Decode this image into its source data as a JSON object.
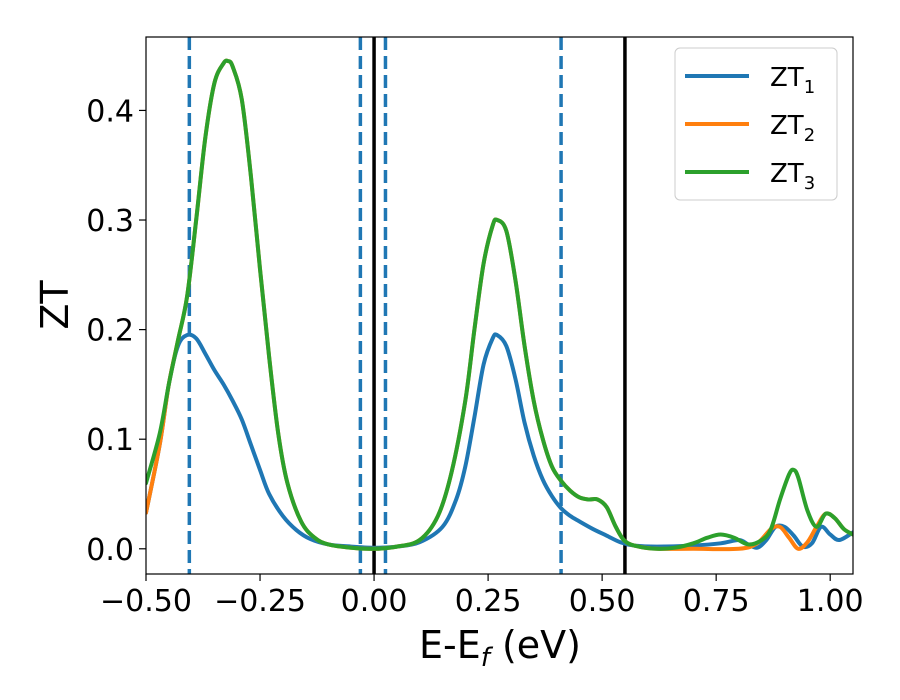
{
  "chart_data": {
    "type": "line",
    "title": "",
    "xlabel": "E-E",
    "xlabel_sub": "f",
    "xlabel_unit": " (eV)",
    "ylabel": "ZT",
    "xlim": [
      -0.5,
      1.05
    ],
    "ylim": [
      -0.023,
      0.467
    ],
    "xticks": [
      -0.5,
      -0.25,
      0.0,
      0.25,
      0.5,
      0.75,
      1.0
    ],
    "xtick_labels": [
      "−0.50",
      "−0.25",
      "0.00",
      "0.25",
      "0.50",
      "0.75",
      "1.00"
    ],
    "yticks": [
      0.0,
      0.1,
      0.2,
      0.3,
      0.4
    ],
    "ytick_labels": [
      "0.0",
      "0.1",
      "0.2",
      "0.3",
      "0.4"
    ],
    "grid": false,
    "legend_position": "top-right",
    "series": [
      {
        "name": "ZT",
        "sub": "1",
        "color": "#1f77b4",
        "points": [
          [
            -0.5,
            0.033
          ],
          [
            -0.47,
            0.095
          ],
          [
            -0.45,
            0.15
          ],
          [
            -0.43,
            0.185
          ],
          [
            -0.41,
            0.195
          ],
          [
            -0.39,
            0.192
          ],
          [
            -0.37,
            0.178
          ],
          [
            -0.35,
            0.163
          ],
          [
            -0.33,
            0.15
          ],
          [
            -0.31,
            0.135
          ],
          [
            -0.29,
            0.118
          ],
          [
            -0.27,
            0.095
          ],
          [
            -0.25,
            0.072
          ],
          [
            -0.23,
            0.05
          ],
          [
            -0.2,
            0.03
          ],
          [
            -0.17,
            0.017
          ],
          [
            -0.14,
            0.009
          ],
          [
            -0.1,
            0.004
          ],
          [
            -0.05,
            0.002
          ],
          [
            0.0,
            0.001
          ],
          [
            0.05,
            0.002
          ],
          [
            0.1,
            0.006
          ],
          [
            0.15,
            0.02
          ],
          [
            0.18,
            0.045
          ],
          [
            0.2,
            0.075
          ],
          [
            0.22,
            0.12
          ],
          [
            0.24,
            0.168
          ],
          [
            0.26,
            0.192
          ],
          [
            0.27,
            0.195
          ],
          [
            0.29,
            0.185
          ],
          [
            0.31,
            0.155
          ],
          [
            0.33,
            0.115
          ],
          [
            0.35,
            0.085
          ],
          [
            0.37,
            0.063
          ],
          [
            0.39,
            0.048
          ],
          [
            0.41,
            0.037
          ],
          [
            0.43,
            0.03
          ],
          [
            0.45,
            0.025
          ],
          [
            0.48,
            0.018
          ],
          [
            0.51,
            0.012
          ],
          [
            0.54,
            0.006
          ],
          [
            0.57,
            0.003
          ],
          [
            0.62,
            0.002
          ],
          [
            0.7,
            0.003
          ],
          [
            0.76,
            0.005
          ],
          [
            0.8,
            0.008
          ],
          [
            0.82,
            0.004
          ],
          [
            0.84,
            0.001
          ],
          [
            0.86,
            0.008
          ],
          [
            0.88,
            0.02
          ],
          [
            0.9,
            0.02
          ],
          [
            0.92,
            0.012
          ],
          [
            0.94,
            0.002
          ],
          [
            0.96,
            0.005
          ],
          [
            0.98,
            0.02
          ],
          [
            1.0,
            0.013
          ],
          [
            1.02,
            0.008
          ],
          [
            1.05,
            0.015
          ]
        ]
      },
      {
        "name": "ZT",
        "sub": "2",
        "color": "#ff7f0e",
        "points": [
          [
            -0.5,
            0.033
          ],
          [
            -0.47,
            0.095
          ],
          [
            -0.45,
            0.15
          ],
          [
            -0.43,
            0.19
          ],
          [
            -0.41,
            0.23
          ],
          [
            -0.39,
            0.3
          ],
          [
            -0.37,
            0.375
          ],
          [
            -0.35,
            0.425
          ],
          [
            -0.33,
            0.443
          ],
          [
            -0.32,
            0.445
          ],
          [
            -0.31,
            0.44
          ],
          [
            -0.29,
            0.41
          ],
          [
            -0.27,
            0.34
          ],
          [
            -0.25,
            0.255
          ],
          [
            -0.23,
            0.175
          ],
          [
            -0.21,
            0.105
          ],
          [
            -0.19,
            0.06
          ],
          [
            -0.16,
            0.025
          ],
          [
            -0.13,
            0.01
          ],
          [
            -0.1,
            0.004
          ],
          [
            -0.05,
            0.001
          ],
          [
            0.0,
            0.0
          ],
          [
            0.05,
            0.002
          ],
          [
            0.1,
            0.008
          ],
          [
            0.14,
            0.03
          ],
          [
            0.17,
            0.07
          ],
          [
            0.2,
            0.135
          ],
          [
            0.22,
            0.2
          ],
          [
            0.24,
            0.26
          ],
          [
            0.26,
            0.295
          ],
          [
            0.27,
            0.3
          ],
          [
            0.29,
            0.29
          ],
          [
            0.31,
            0.245
          ],
          [
            0.33,
            0.185
          ],
          [
            0.35,
            0.135
          ],
          [
            0.37,
            0.1
          ],
          [
            0.39,
            0.075
          ],
          [
            0.41,
            0.062
          ],
          [
            0.43,
            0.053
          ],
          [
            0.45,
            0.047
          ],
          [
            0.47,
            0.045
          ],
          [
            0.49,
            0.045
          ],
          [
            0.51,
            0.038
          ],
          [
            0.53,
            0.02
          ],
          [
            0.55,
            0.007
          ],
          [
            0.58,
            0.002
          ],
          [
            0.62,
            0.0
          ],
          [
            0.7,
            0.0
          ],
          [
            0.8,
            0.0
          ],
          [
            0.84,
            0.005
          ],
          [
            0.87,
            0.018
          ],
          [
            0.89,
            0.02
          ],
          [
            0.91,
            0.01
          ],
          [
            0.93,
            0.0
          ],
          [
            0.95,
            0.006
          ],
          [
            0.97,
            0.02
          ],
          [
            0.99,
            0.032
          ],
          [
            1.01,
            0.028
          ],
          [
            1.03,
            0.018
          ],
          [
            1.05,
            0.013
          ]
        ]
      },
      {
        "name": "ZT",
        "sub": "3",
        "color": "#2ca02c",
        "points": [
          [
            -0.5,
            0.06
          ],
          [
            -0.47,
            0.105
          ],
          [
            -0.45,
            0.15
          ],
          [
            -0.43,
            0.19
          ],
          [
            -0.41,
            0.23
          ],
          [
            -0.39,
            0.3
          ],
          [
            -0.37,
            0.375
          ],
          [
            -0.35,
            0.425
          ],
          [
            -0.33,
            0.443
          ],
          [
            -0.32,
            0.445
          ],
          [
            -0.31,
            0.44
          ],
          [
            -0.29,
            0.41
          ],
          [
            -0.27,
            0.34
          ],
          [
            -0.25,
            0.255
          ],
          [
            -0.23,
            0.175
          ],
          [
            -0.21,
            0.105
          ],
          [
            -0.19,
            0.06
          ],
          [
            -0.16,
            0.025
          ],
          [
            -0.13,
            0.01
          ],
          [
            -0.1,
            0.004
          ],
          [
            -0.05,
            0.001
          ],
          [
            0.0,
            0.0
          ],
          [
            0.05,
            0.002
          ],
          [
            0.1,
            0.008
          ],
          [
            0.14,
            0.03
          ],
          [
            0.17,
            0.07
          ],
          [
            0.2,
            0.135
          ],
          [
            0.22,
            0.2
          ],
          [
            0.24,
            0.26
          ],
          [
            0.26,
            0.295
          ],
          [
            0.27,
            0.3
          ],
          [
            0.29,
            0.29
          ],
          [
            0.31,
            0.245
          ],
          [
            0.33,
            0.185
          ],
          [
            0.35,
            0.135
          ],
          [
            0.37,
            0.1
          ],
          [
            0.39,
            0.075
          ],
          [
            0.41,
            0.062
          ],
          [
            0.43,
            0.053
          ],
          [
            0.45,
            0.047
          ],
          [
            0.47,
            0.045
          ],
          [
            0.49,
            0.045
          ],
          [
            0.51,
            0.038
          ],
          [
            0.53,
            0.02
          ],
          [
            0.55,
            0.007
          ],
          [
            0.58,
            0.002
          ],
          [
            0.62,
            0.0
          ],
          [
            0.66,
            0.001
          ],
          [
            0.7,
            0.005
          ],
          [
            0.73,
            0.01
          ],
          [
            0.76,
            0.013
          ],
          [
            0.79,
            0.01
          ],
          [
            0.82,
            0.004
          ],
          [
            0.85,
            0.008
          ],
          [
            0.87,
            0.018
          ],
          [
            0.89,
            0.045
          ],
          [
            0.91,
            0.068
          ],
          [
            0.92,
            0.072
          ],
          [
            0.93,
            0.065
          ],
          [
            0.95,
            0.035
          ],
          [
            0.97,
            0.02
          ],
          [
            0.99,
            0.032
          ],
          [
            1.01,
            0.028
          ],
          [
            1.03,
            0.018
          ],
          [
            1.05,
            0.013
          ]
        ]
      }
    ],
    "vlines": [
      {
        "x": -0.405,
        "style": "dashed",
        "color": "#1f77b4"
      },
      {
        "x": -0.03,
        "style": "dashed",
        "color": "#1f77b4"
      },
      {
        "x": 0.025,
        "style": "dashed",
        "color": "#1f77b4"
      },
      {
        "x": 0.41,
        "style": "dashed",
        "color": "#1f77b4"
      },
      {
        "x": 0.0,
        "style": "solid",
        "color": "#000000"
      },
      {
        "x": 0.55,
        "style": "solid",
        "color": "#000000"
      }
    ]
  }
}
